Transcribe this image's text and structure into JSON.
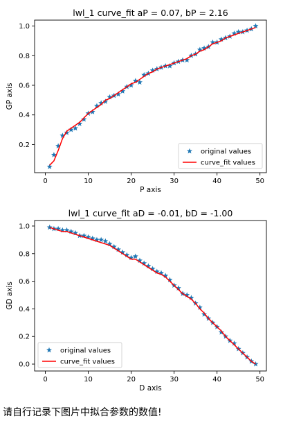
{
  "caption": "请自行记录下图片中拟合参数的数值!",
  "chart_data": [
    {
      "type": "line",
      "title": "lwl_1 curve_fit aP = 0.07, bP = 2.16",
      "xlabel": "P axis",
      "ylabel": "GP axis",
      "xlim": [
        -2.5,
        51.5
      ],
      "ylim": [
        0.01,
        1.04
      ],
      "xticks": [
        0,
        10,
        20,
        30,
        40,
        50
      ],
      "yticks": [
        0.2,
        0.4,
        0.6,
        0.8,
        1.0
      ],
      "xtick_labels": [
        "0",
        "10",
        "20",
        "30",
        "40",
        "50"
      ],
      "ytick_labels": [
        "0.2",
        "0.4",
        "0.6",
        "0.8",
        "1.0"
      ],
      "grid": false,
      "legend_position": "lower-right",
      "series": [
        {
          "name": "original values",
          "style": "marker-star",
          "color": "#1f77b4",
          "x": [
            1,
            2,
            3,
            4,
            5,
            6,
            7,
            8,
            9,
            10,
            11,
            12,
            13,
            14,
            15,
            16,
            17,
            18,
            19,
            20,
            21,
            22,
            23,
            24,
            25,
            26,
            27,
            28,
            29,
            30,
            31,
            32,
            33,
            34,
            35,
            36,
            37,
            38,
            39,
            40,
            41,
            42,
            43,
            44,
            45,
            46,
            47,
            48,
            49
          ],
          "y": [
            0.05,
            0.13,
            0.19,
            0.26,
            0.28,
            0.3,
            0.31,
            0.34,
            0.37,
            0.41,
            0.42,
            0.46,
            0.48,
            0.49,
            0.52,
            0.53,
            0.54,
            0.56,
            0.59,
            0.6,
            0.63,
            0.62,
            0.67,
            0.68,
            0.7,
            0.71,
            0.72,
            0.73,
            0.73,
            0.75,
            0.76,
            0.77,
            0.77,
            0.8,
            0.81,
            0.84,
            0.85,
            0.86,
            0.89,
            0.89,
            0.91,
            0.92,
            0.93,
            0.95,
            0.96,
            0.96,
            0.97,
            0.98,
            1.0
          ]
        },
        {
          "name": "curve_fit values",
          "style": "line",
          "color": "#ff0000",
          "x": [
            1,
            2,
            3,
            4,
            5,
            6,
            7,
            8,
            9,
            10,
            11,
            12,
            13,
            14,
            15,
            16,
            17,
            18,
            19,
            20,
            21,
            22,
            23,
            24,
            25,
            26,
            27,
            28,
            29,
            30,
            31,
            32,
            33,
            34,
            35,
            36,
            37,
            38,
            39,
            40,
            41,
            42,
            43,
            44,
            45,
            46,
            47,
            48,
            49
          ],
          "y": [
            0.06,
            0.09,
            0.16,
            0.24,
            0.29,
            0.31,
            0.33,
            0.35,
            0.38,
            0.41,
            0.43,
            0.45,
            0.47,
            0.5,
            0.51,
            0.53,
            0.55,
            0.57,
            0.59,
            0.61,
            0.62,
            0.64,
            0.66,
            0.68,
            0.69,
            0.71,
            0.72,
            0.73,
            0.74,
            0.75,
            0.76,
            0.77,
            0.78,
            0.8,
            0.81,
            0.83,
            0.84,
            0.86,
            0.88,
            0.89,
            0.9,
            0.92,
            0.93,
            0.94,
            0.95,
            0.96,
            0.97,
            0.98,
            0.99
          ]
        }
      ]
    },
    {
      "type": "line",
      "title": "lwl_1 curve_fit aD = -0.01, bD = -1.00",
      "xlabel": "D axis",
      "ylabel": "GD axis",
      "xlim": [
        -2.5,
        51.5
      ],
      "ylim": [
        -0.05,
        1.04
      ],
      "xticks": [
        0,
        10,
        20,
        30,
        40,
        50
      ],
      "yticks": [
        0.0,
        0.2,
        0.4,
        0.6,
        0.8,
        1.0
      ],
      "xtick_labels": [
        "0",
        "10",
        "20",
        "30",
        "40",
        "50"
      ],
      "ytick_labels": [
        "0.0",
        "0.2",
        "0.4",
        "0.6",
        "0.8",
        "1.0"
      ],
      "grid": false,
      "legend_position": "lower-left",
      "series": [
        {
          "name": "original values",
          "style": "marker-star",
          "color": "#1f77b4",
          "x": [
            1,
            2,
            3,
            4,
            5,
            6,
            7,
            8,
            9,
            10,
            11,
            12,
            13,
            14,
            15,
            16,
            17,
            18,
            19,
            20,
            21,
            22,
            23,
            24,
            25,
            26,
            27,
            28,
            29,
            30,
            31,
            32,
            33,
            34,
            35,
            36,
            37,
            38,
            39,
            40,
            41,
            42,
            43,
            44,
            45,
            46,
            47,
            48,
            49
          ],
          "y": [
            0.99,
            0.98,
            0.98,
            0.97,
            0.97,
            0.96,
            0.95,
            0.93,
            0.93,
            0.92,
            0.91,
            0.9,
            0.9,
            0.89,
            0.87,
            0.85,
            0.83,
            0.81,
            0.79,
            0.77,
            0.78,
            0.75,
            0.73,
            0.71,
            0.69,
            0.67,
            0.66,
            0.64,
            0.61,
            0.57,
            0.55,
            0.51,
            0.5,
            0.48,
            0.44,
            0.41,
            0.36,
            0.33,
            0.3,
            0.27,
            0.23,
            0.2,
            0.17,
            0.15,
            0.11,
            0.08,
            0.05,
            0.02,
            0.0
          ]
        },
        {
          "name": "curve_fit values",
          "style": "line",
          "color": "#ff0000",
          "x": [
            1,
            2,
            3,
            4,
            5,
            6,
            7,
            8,
            9,
            10,
            11,
            12,
            13,
            14,
            15,
            16,
            17,
            18,
            19,
            20,
            21,
            22,
            23,
            24,
            25,
            26,
            27,
            28,
            29,
            30,
            31,
            32,
            33,
            34,
            35,
            36,
            37,
            38,
            39,
            40,
            41,
            42,
            43,
            44,
            45,
            46,
            47,
            48,
            49
          ],
          "y": [
            0.99,
            0.98,
            0.97,
            0.96,
            0.96,
            0.95,
            0.94,
            0.93,
            0.92,
            0.91,
            0.9,
            0.89,
            0.88,
            0.87,
            0.86,
            0.84,
            0.82,
            0.8,
            0.78,
            0.76,
            0.76,
            0.74,
            0.72,
            0.7,
            0.68,
            0.66,
            0.65,
            0.63,
            0.6,
            0.57,
            0.54,
            0.51,
            0.49,
            0.47,
            0.44,
            0.4,
            0.37,
            0.33,
            0.3,
            0.27,
            0.24,
            0.2,
            0.17,
            0.14,
            0.11,
            0.08,
            0.05,
            0.02,
            0.0
          ]
        }
      ]
    }
  ]
}
